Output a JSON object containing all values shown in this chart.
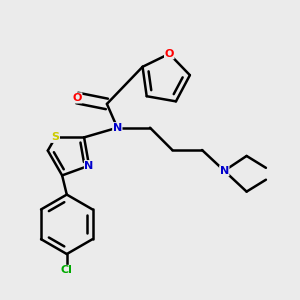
{
  "bg_color": "#ebebeb",
  "atom_colors": {
    "O": "#ff0000",
    "N": "#0000cc",
    "S": "#cccc00",
    "Cl": "#00aa00",
    "C": "#000000"
  },
  "bond_color": "#000000",
  "bond_width": 1.8,
  "figsize": [
    3.0,
    3.0
  ],
  "dpi": 100
}
